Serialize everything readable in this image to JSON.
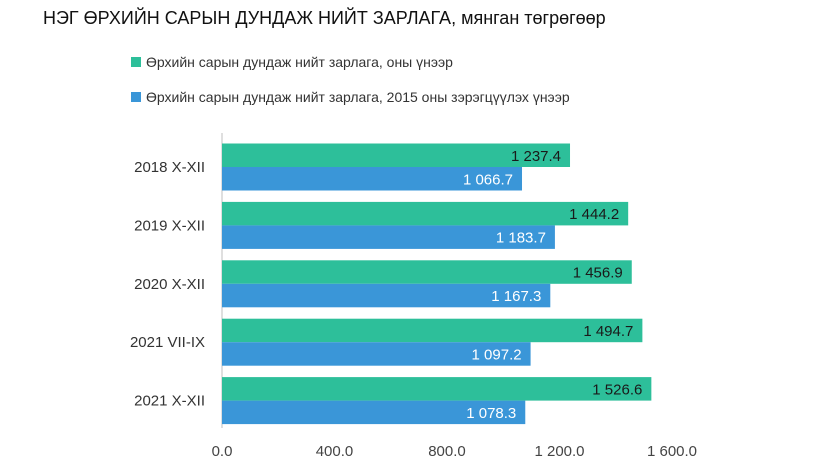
{
  "chart_data": {
    "type": "bar",
    "orientation": "horizontal",
    "title": "НЭГ ӨРХИЙН САРЫН ДУНДАЖ НИЙТ ЗАРЛАГА, мянган төгрөгөөр",
    "categories": [
      "2018 X-XII",
      "2019 X-XII",
      "2020 X-XII",
      "2021 VII-IX",
      "2021 X-XII"
    ],
    "series": [
      {
        "name": "Өрхийн сарын дундаж нийт зарлага, оны үнээр",
        "color": "#2dbf9a",
        "values": [
          1237.4,
          1444.2,
          1456.9,
          1494.7,
          1526.6
        ],
        "labels": [
          "1 237.4",
          "1 444.2",
          "1 456.9",
          "1 494.7",
          "1 526.6"
        ]
      },
      {
        "name": "Өрхийн сарын дундаж нийт зарлага, 2015 оны зэрэгцүүлэх үнээр",
        "color": "#3a96d8",
        "values": [
          1066.7,
          1183.7,
          1167.3,
          1097.2,
          1078.3
        ],
        "labels": [
          "1 066.7",
          "1 183.7",
          "1 167.3",
          "1 097.2",
          "1 078.3"
        ]
      }
    ],
    "xlim": [
      0,
      1600
    ],
    "xticks": [
      0,
      400,
      800,
      1200,
      1600
    ],
    "xtick_labels": [
      "0.0",
      "400.0",
      "800.0",
      "1 200.0",
      "1 600.0"
    ],
    "legend_position": "top",
    "grid": false
  }
}
